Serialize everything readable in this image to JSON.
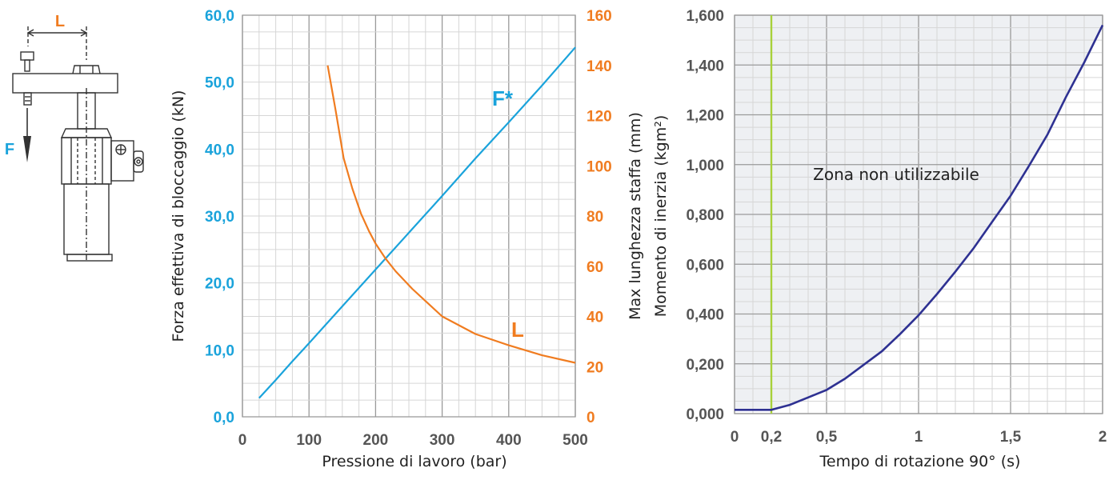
{
  "diagram": {
    "length_label": "L",
    "force_label": "F",
    "colors": {
      "length": "#f07c20",
      "force": "#1aa3db",
      "outline": "#333333"
    }
  },
  "chart_data": [
    {
      "type": "line",
      "xlabel": "Pressione di lavoro (bar)",
      "ylabel_left": "Forza effettiva di bloccaggio (kN)",
      "ylabel_right": "Max lunghezza staffa (mm)",
      "xlim": [
        0,
        500
      ],
      "ylim_left": [
        0,
        60
      ],
      "ylim_right": [
        0,
        160
      ],
      "x_ticks": [
        "0",
        "100",
        "200",
        "300",
        "400",
        "500"
      ],
      "y_left_ticks": [
        "0,0",
        "10,0",
        "20,0",
        "30,0",
        "40,0",
        "50,0",
        "60,0"
      ],
      "y_right_ticks": [
        "0",
        "20",
        "40",
        "60",
        "80",
        "100",
        "120",
        "140",
        "160"
      ],
      "grid": true,
      "series": [
        {
          "name": "F*",
          "axis": "left",
          "color": "#1aa3db",
          "x": [
            25,
            50,
            75,
            100,
            150,
            200,
            250,
            300,
            350,
            400,
            450,
            500
          ],
          "y": [
            2.8,
            5.5,
            8.3,
            11.0,
            16.5,
            22.0,
            27.5,
            33.0,
            38.6,
            44.0,
            49.5,
            55.2
          ]
        },
        {
          "name": "L",
          "axis": "right",
          "color": "#f07c20",
          "x": [
            128,
            140,
            152,
            165,
            178,
            190,
            200,
            215,
            230,
            255,
            300,
            350,
            400,
            450,
            500
          ],
          "y": [
            140,
            122,
            103,
            91,
            81,
            74,
            69,
            63,
            58,
            51,
            40,
            33,
            28.5,
            24.5,
            21.5
          ]
        }
      ]
    },
    {
      "type": "area",
      "xlabel": "Tempo di rotazione 90° (s)",
      "ylabel": "Momento di inerzia (kgm²)",
      "xlim": [
        0,
        2
      ],
      "ylim": [
        0,
        1.6
      ],
      "x_ticks": [
        {
          "value": 0,
          "label": "0"
        },
        {
          "value": 0.2,
          "label": "0,2"
        },
        {
          "value": 0.5,
          "label": "0,5"
        },
        {
          "value": 1,
          "label": "1"
        },
        {
          "value": 1.5,
          "label": "1,5"
        },
        {
          "value": 2,
          "label": "2"
        }
      ],
      "y_ticks": [
        "0,000",
        "0,200",
        "0,400",
        "0,600",
        "0,800",
        "1,000",
        "1,200",
        "1,400",
        "1,600"
      ],
      "grid": true,
      "annotation": "Zona non utilizzabile",
      "vertical_line": {
        "x": 0.2,
        "color": "#a8d13a"
      },
      "curve_color": "#2e3192",
      "zone_color": "#eef0f3",
      "series": [
        {
          "x": [
            0,
            0.2,
            0.3,
            0.4,
            0.5,
            0.6,
            0.7,
            0.8,
            0.9,
            1.0,
            1.1,
            1.2,
            1.3,
            1.4,
            1.5,
            1.6,
            1.7,
            1.8,
            1.9,
            2.0
          ],
          "y": [
            0.015,
            0.015,
            0.035,
            0.065,
            0.095,
            0.14,
            0.195,
            0.25,
            0.32,
            0.395,
            0.48,
            0.57,
            0.665,
            0.77,
            0.875,
            0.995,
            1.12,
            1.27,
            1.41,
            1.56
          ]
        }
      ]
    }
  ]
}
